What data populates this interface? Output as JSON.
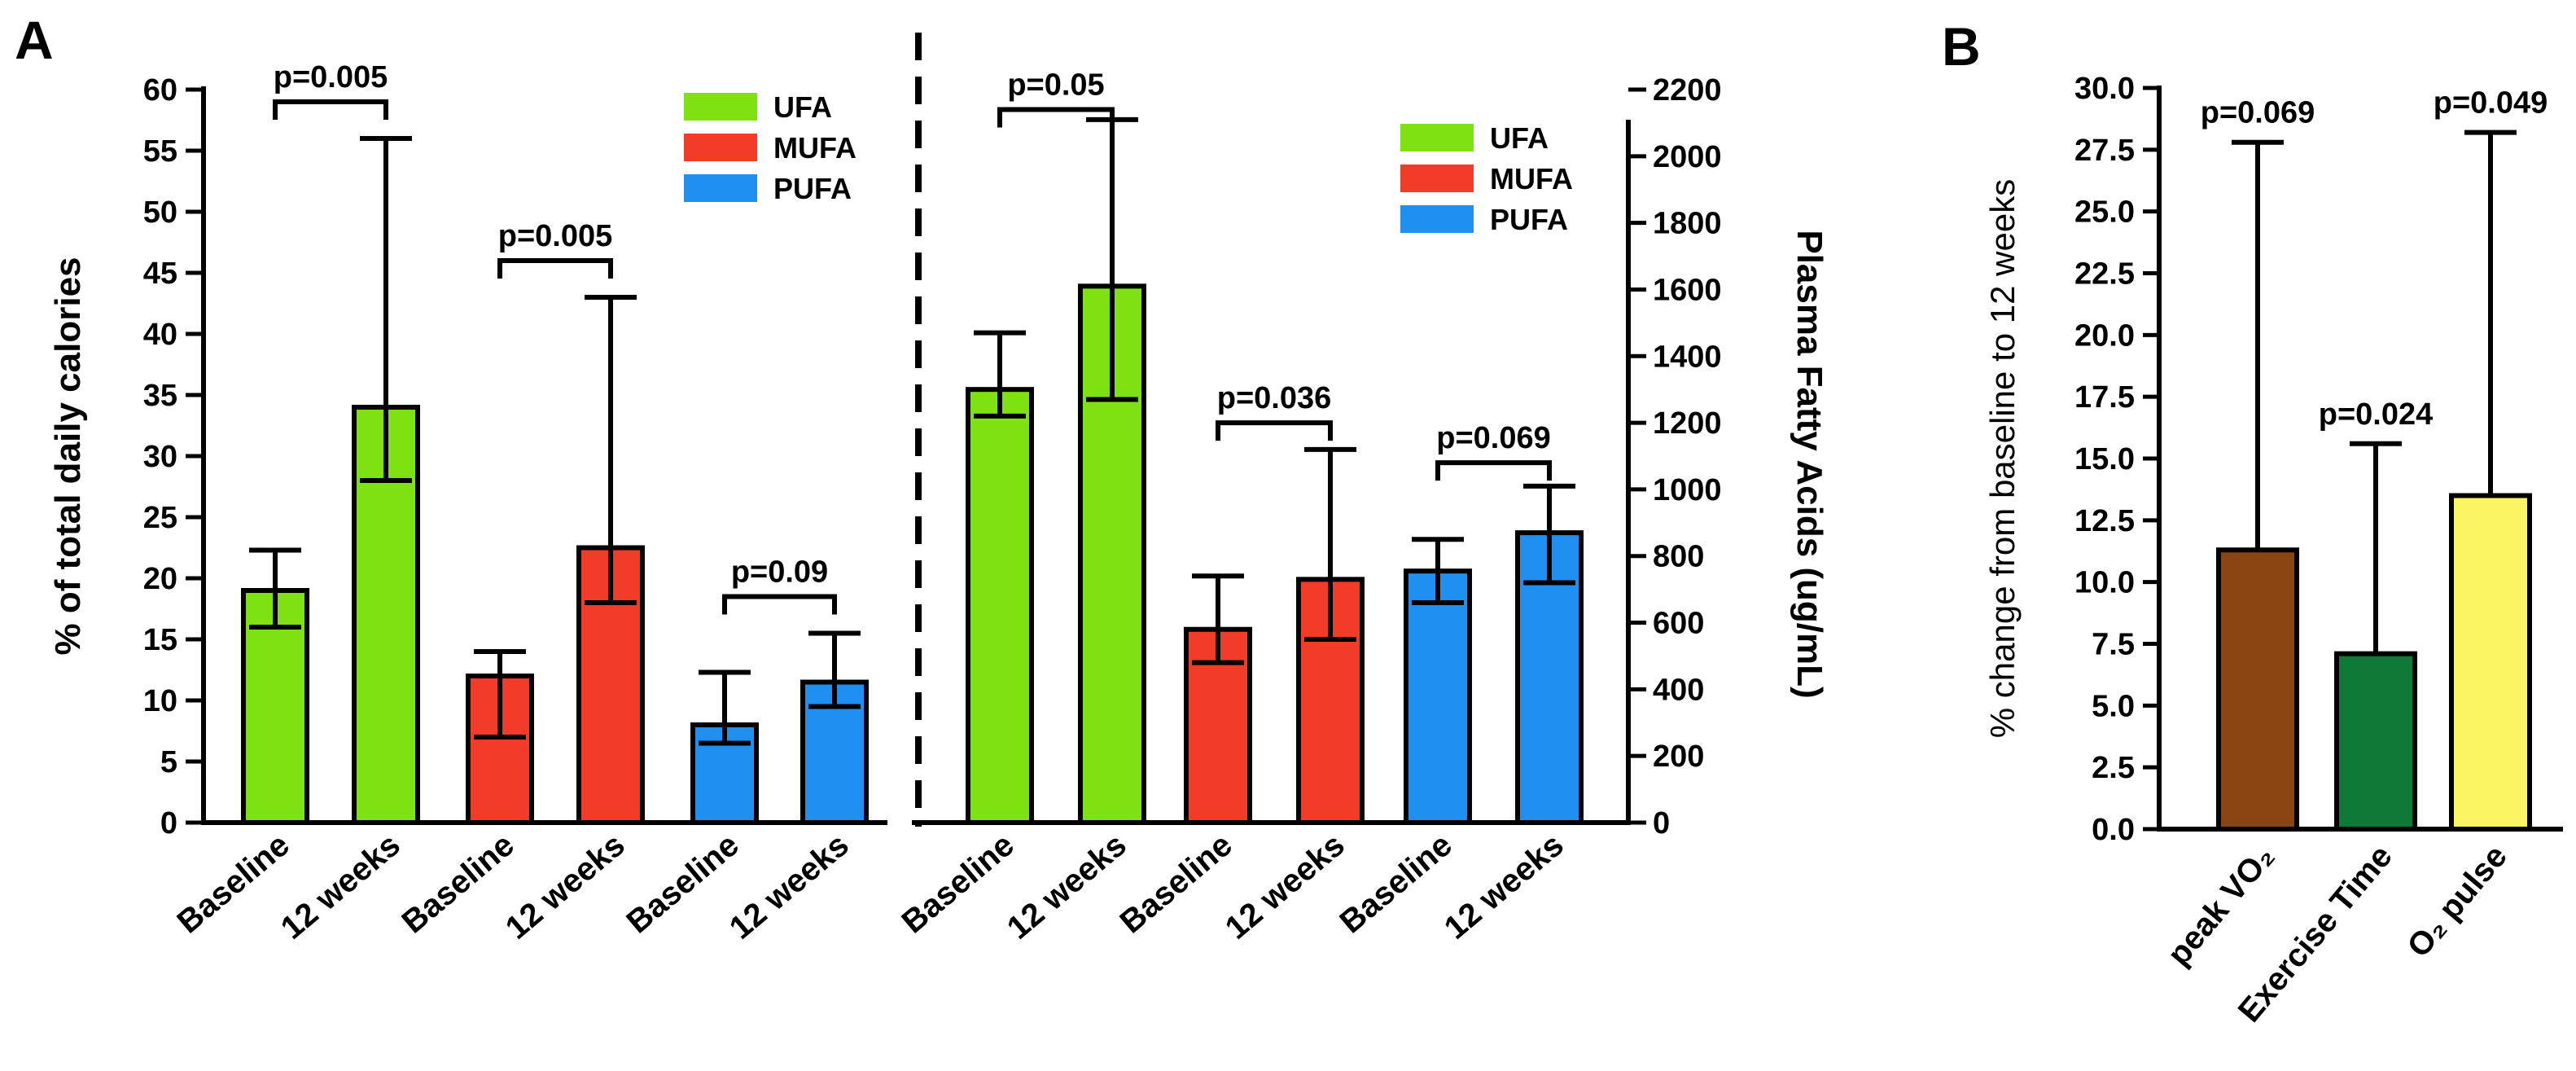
{
  "colors": {
    "UFA": "#7ee212",
    "MUFA": "#f23c28",
    "PUFA": "#1f8ff0",
    "peak": "#8a4512",
    "exercise": "#0f7a38",
    "o2": "#fbf563"
  },
  "chart_data": [
    {
      "panel": "A",
      "type": "bar",
      "title": "",
      "ylabel": "% of total daily calories",
      "ylim": [
        0,
        60
      ],
      "yticks": [
        "0",
        "5",
        "10",
        "15",
        "20",
        "25",
        "30",
        "35",
        "40",
        "45",
        "50",
        "55",
        "60"
      ],
      "categories": [
        "Baseline",
        "12 weeks",
        "Baseline",
        "12 weeks",
        "Baseline",
        "12 weeks"
      ],
      "groups": [
        "UFA",
        "UFA",
        "MUFA",
        "MUFA",
        "PUFA",
        "PUFA"
      ],
      "values": [
        19,
        34,
        12,
        22.5,
        8,
        11.5
      ],
      "err_low": [
        16,
        28,
        7,
        18,
        6.5,
        9.5
      ],
      "err_high": [
        22.3,
        56,
        14,
        43,
        12.3,
        15.5
      ],
      "comparisons": [
        {
          "label": "p=0.005",
          "a": 0,
          "b": 1,
          "y": 59
        },
        {
          "label": "p=0.005",
          "a": 2,
          "b": 3,
          "y": 46
        },
        {
          "label": "p=0.09",
          "a": 4,
          "b": 5,
          "y": 18.5
        }
      ],
      "legend": [
        "UFA",
        "MUFA",
        "PUFA"
      ]
    },
    {
      "panel": "A-right",
      "type": "bar",
      "title": "",
      "ylabel": "Plasma Fatty Acids (ug/mL)",
      "ylim": [
        0,
        2200
      ],
      "yticks": [
        "0",
        "200",
        "400",
        "600",
        "800",
        "1000",
        "1200",
        "1400",
        "1600",
        "1800",
        "2000",
        "2200"
      ],
      "categories": [
        "Baseline",
        "12 weeks",
        "Baseline",
        "12 weeks",
        "Baseline",
        "12 weeks"
      ],
      "groups": [
        "UFA",
        "UFA",
        "MUFA",
        "MUFA",
        "PUFA",
        "PUFA"
      ],
      "values": [
        1300,
        1610,
        580,
        730,
        755,
        870
      ],
      "err_low": [
        1220,
        1270,
        480,
        550,
        660,
        720
      ],
      "err_high": [
        1470,
        2110,
        740,
        1120,
        850,
        1010
      ],
      "comparisons": [
        {
          "label": "p=0.05",
          "a": 0,
          "b": 1,
          "y": 2140
        },
        {
          "label": "p=0.036",
          "a": 2,
          "b": 3,
          "y": 1200
        },
        {
          "label": "p=0.069",
          "a": 4,
          "b": 5,
          "y": 1080
        }
      ],
      "legend": [
        "UFA",
        "MUFA",
        "PUFA"
      ]
    },
    {
      "panel": "B",
      "type": "bar",
      "title": "",
      "ylabel": "% change from baseline to 12 weeks",
      "ylim": [
        0,
        30
      ],
      "yticks": [
        "0.0",
        "2.5",
        "5.0",
        "7.5",
        "10.0",
        "12.5",
        "15.0",
        "17.5",
        "20.0",
        "22.5",
        "25.0",
        "27.5",
        "30.0"
      ],
      "categories": [
        "peak VO₂",
        "Exercise Time",
        "O₂ pulse"
      ],
      "values": [
        11.3,
        7.1,
        13.5
      ],
      "err_high": [
        27.8,
        15.6,
        28.2
      ],
      "pvalues": [
        "p=0.069",
        "p=0.024",
        "p=0.049"
      ]
    }
  ]
}
